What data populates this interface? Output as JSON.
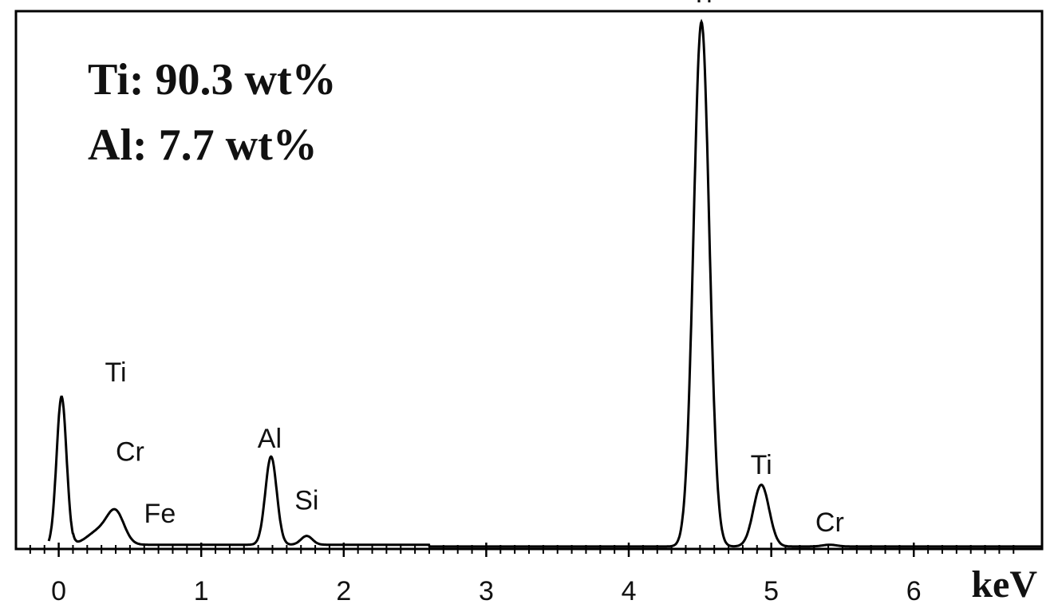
{
  "chart_data": {
    "type": "line",
    "title": "",
    "xlabel": "keV",
    "ylabel": "",
    "xlim": [
      -0.3,
      6.9
    ],
    "ylim": [
      0,
      1.22
    ],
    "grid": false,
    "x_ticks": [
      0,
      1,
      2,
      3,
      4,
      5,
      6
    ],
    "composition": [
      {
        "text": "Ti: 90.3 wt%"
      },
      {
        "text": "Al: 7.7 wt%"
      }
    ],
    "peaks": [
      {
        "x": 0.02,
        "height": 0.34,
        "width": 0.035
      },
      {
        "x": 0.4,
        "height": 0.07,
        "width": 0.06
      },
      {
        "x": 0.28,
        "height": 0.03,
        "width": 0.08
      },
      {
        "x": 1.49,
        "height": 0.2,
        "width": 0.04
      },
      {
        "x": 1.74,
        "height": 0.02,
        "width": 0.04
      },
      {
        "x": 4.51,
        "height": 1.19,
        "width": 0.055
      },
      {
        "x": 4.93,
        "height": 0.14,
        "width": 0.055
      },
      {
        "x": 5.41,
        "height": 0.004,
        "width": 0.05
      }
    ],
    "background_level": 0.006,
    "annotations": [
      {
        "text": "Ti",
        "x": 0.4,
        "y": 0.38
      },
      {
        "text": "Cr",
        "x": 0.5,
        "y": 0.2
      },
      {
        "text": "Fe",
        "x": 0.71,
        "y": 0.06
      },
      {
        "text": "Al",
        "x": 1.48,
        "y": 0.23
      },
      {
        "text": "Si",
        "x": 1.74,
        "y": 0.09
      },
      {
        "text": "Ti",
        "x": 4.51,
        "y": 1.24
      },
      {
        "text": "Ti",
        "x": 4.93,
        "y": 0.17
      },
      {
        "text": "Cr",
        "x": 5.41,
        "y": 0.04
      }
    ]
  },
  "colors": {
    "line": "#000000",
    "text": "#111111",
    "background": "#ffffff"
  }
}
